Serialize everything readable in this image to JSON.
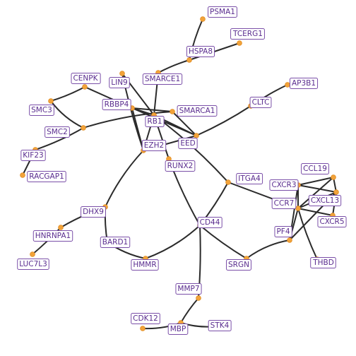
{
  "network": {
    "colors": {
      "edge": "#2b2b2b",
      "node": "#f2a33a",
      "label_text": "#5a2d8f",
      "label_border": "#7a4fa8"
    },
    "nodes": [
      "PSMA1",
      "TCERG1",
      "HSPA8",
      "SMARCE1",
      "LIN9",
      "CENPK",
      "AP3B1",
      "RBBP4",
      "SMARCA1",
      "CLTC",
      "SMC3",
      "RB1",
      "SMC2",
      "EED",
      "EZH2",
      "KIF23",
      "RUNX2",
      "RACGAP1",
      "CCL19",
      "ITGA4",
      "CXCR3",
      "CXCL13",
      "CCR7",
      "DHX9",
      "CXCR5",
      "CD44",
      "PF4",
      "HNRNPA1",
      "BARD1",
      "THBD",
      "LUC7L3",
      "HMMR",
      "SRGN",
      "MMP7",
      "CDK12",
      "MBP",
      "STK4"
    ],
    "edges": [
      [
        "PSMA1",
        "HSPA8"
      ],
      [
        "TCERG1",
        "HSPA8"
      ],
      [
        "HSPA8",
        "SMARCE1"
      ],
      [
        "SMARCE1",
        "RB1"
      ],
      [
        "LIN9",
        "RB1"
      ],
      [
        "LIN9",
        "EZH2"
      ],
      [
        "CENPK",
        "RBBP4"
      ],
      [
        "CENPK",
        "SMC3"
      ],
      [
        "SMC3",
        "SMC2"
      ],
      [
        "SMC2",
        "KIF23"
      ],
      [
        "KIF23",
        "RACGAP1"
      ],
      [
        "SMC2",
        "SMARCA1"
      ],
      [
        "AP3B1",
        "CLTC"
      ],
      [
        "CLTC",
        "EED"
      ],
      [
        "RBBP4",
        "SMARCA1"
      ],
      [
        "RBBP4",
        "RB1"
      ],
      [
        "RBBP4",
        "EED"
      ],
      [
        "RBBP4",
        "EZH2"
      ],
      [
        "RB1",
        "EED"
      ],
      [
        "RB1",
        "EZH2"
      ],
      [
        "RB1",
        "RUNX2"
      ],
      [
        "RB1",
        "ITGA4"
      ],
      [
        "SMARCA1",
        "EED"
      ],
      [
        "EED",
        "EZH2"
      ],
      [
        "EZH2",
        "DHX9"
      ],
      [
        "RUNX2",
        "CD44"
      ],
      [
        "ITGA4",
        "CD44"
      ],
      [
        "ITGA4",
        "CCR7"
      ],
      [
        "CCL19",
        "CXCR3"
      ],
      [
        "CCL19",
        "CXCL13"
      ],
      [
        "CCL19",
        "CCR7"
      ],
      [
        "CXCR3",
        "CXCL13"
      ],
      [
        "CXCR3",
        "CCR7"
      ],
      [
        "CXCL13",
        "CCR7"
      ],
      [
        "CXCL13",
        "CXCR5"
      ],
      [
        "CCR7",
        "CXCR5"
      ],
      [
        "CCR7",
        "PF4"
      ],
      [
        "CCR7",
        "THBD"
      ],
      [
        "CXCL13",
        "PF4"
      ],
      [
        "CXCR3",
        "PF4"
      ],
      [
        "PF4",
        "SRGN"
      ],
      [
        "CD44",
        "SRGN"
      ],
      [
        "CD44",
        "HMMR"
      ],
      [
        "CD44",
        "MMP7"
      ],
      [
        "DHX9",
        "BARD1"
      ],
      [
        "DHX9",
        "HNRNPA1"
      ],
      [
        "HNRNPA1",
        "LUC7L3"
      ],
      [
        "BARD1",
        "HMMR"
      ],
      [
        "MMP7",
        "MBP"
      ],
      [
        "CDK12",
        "MBP"
      ],
      [
        "MBP",
        "STK4"
      ]
    ]
  }
}
